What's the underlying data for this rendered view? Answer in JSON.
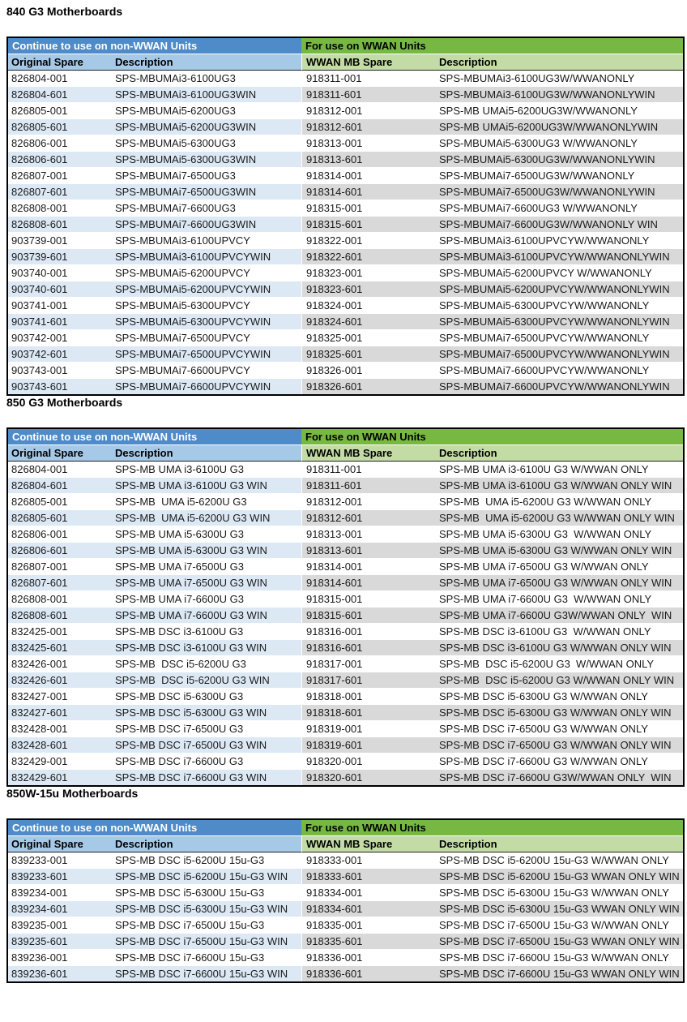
{
  "table_headers": {
    "non_wwan_group": "Continue to use on non-WWAN Units",
    "wwan_group": "For use on WWAN Units",
    "original_spare": "Original Spare",
    "description": "Description",
    "wwan_mb_spare": "WWAN MB Spare"
  },
  "colors": {
    "non_wwan_header": "#4E8BC8",
    "wwan_header": "#77B843",
    "non_wwan_subheader": "#A7C9E8",
    "wwan_subheader": "#C3DCA6",
    "stripe_blue": "#DCE9F5",
    "stripe_gray": "#D9D9D9",
    "border_black": "#000000"
  },
  "sections": [
    {
      "title": "840 G3 Motherboards",
      "rows": [
        [
          "826804-001",
          "SPS-MBUMAi3-6100UG3",
          "918311-001",
          "SPS-MBUMAi3-6100UG3W/WWANONLY"
        ],
        [
          "826804-601",
          "SPS-MBUMAi3-6100UG3WIN",
          "918311-601",
          "SPS-MBUMAi3-6100UG3W/WWANONLYWIN"
        ],
        [
          "826805-001",
          "SPS-MBUMAi5-6200UG3",
          "918312-001",
          "SPS-MB UMAi5-6200UG3W/WWANONLY"
        ],
        [
          "826805-601",
          "SPS-MBUMAi5-6200UG3WIN",
          "918312-601",
          "SPS-MB UMAi5-6200UG3W/WWANONLYWIN"
        ],
        [
          "826806-001",
          "SPS-MBUMAi5-6300UG3",
          "918313-001",
          "SPS-MBUMAi5-6300UG3 W/WWANONLY"
        ],
        [
          "826806-601",
          "SPS-MBUMAi5-6300UG3WIN",
          "918313-601",
          "SPS-MBUMAi5-6300UG3W/WWANONLYWIN"
        ],
        [
          "826807-001",
          "SPS-MBUMAi7-6500UG3",
          "918314-001",
          "SPS-MBUMAi7-6500UG3W/WWANONLY"
        ],
        [
          "826807-601",
          "SPS-MBUMAi7-6500UG3WIN",
          "918314-601",
          "SPS-MBUMAi7-6500UG3W/WWANONLYWIN"
        ],
        [
          "826808-001",
          "SPS-MBUMAi7-6600UG3",
          "918315-001",
          "SPS-MBUMAi7-6600UG3 W/WWANONLY"
        ],
        [
          "826808-601",
          "SPS-MBUMAi7-6600UG3WIN",
          "918315-601",
          "SPS-MBUMAi7-6600UG3W/WWANONLY WIN"
        ],
        [
          "903739-001",
          "SPS-MBUMAi3-6100UPVCY",
          "918322-001",
          "SPS-MBUMAi3-6100UPVCYW/WWANONLY"
        ],
        [
          "903739-601",
          "SPS-MBUMAi3-6100UPVCYWIN",
          "918322-601",
          "SPS-MBUMAi3-6100UPVCYW/WWANONLYWIN"
        ],
        [
          "903740-001",
          "SPS-MBUMAi5-6200UPVCY",
          "918323-001",
          "SPS-MBUMAi5-6200UPVCY W/WWANONLY"
        ],
        [
          "903740-601",
          "SPS-MBUMAi5-6200UPVCYWIN",
          "918323-601",
          "SPS-MBUMAi5-6200UPVCYW/WWANONLYWIN"
        ],
        [
          "903741-001",
          "SPS-MBUMAi5-6300UPVCY",
          "918324-001",
          "SPS-MBUMAi5-6300UPVCYW/WWANONLY"
        ],
        [
          "903741-601",
          "SPS-MBUMAi5-6300UPVCYWIN",
          "918324-601",
          "SPS-MBUMAi5-6300UPVCYW/WWANONLYWIN"
        ],
        [
          "903742-001",
          "SPS-MBUMAi7-6500UPVCY",
          "918325-001",
          "SPS-MBUMAi7-6500UPVCYW/WWANONLY"
        ],
        [
          "903742-601",
          "SPS-MBUMAi7-6500UPVCYWIN",
          "918325-601",
          "SPS-MBUMAi7-6500UPVCYW/WWANONLYWIN"
        ],
        [
          "903743-001",
          "SPS-MBUMAi7-6600UPVCY",
          "918326-001",
          "SPS-MBUMAi7-6600UPVCYW/WWANONLY"
        ],
        [
          "903743-601",
          "SPS-MBUMAi7-6600UPVCYWIN",
          "918326-601",
          "SPS-MBUMAi7-6600UPVCYW/WWANONLYWIN"
        ]
      ]
    },
    {
      "title": "850 G3 Motherboards",
      "rows": [
        [
          "826804-001",
          "SPS-MB UMA i3-6100U G3",
          "918311-001",
          "SPS-MB UMA i3-6100U G3 W/WWAN ONLY"
        ],
        [
          "826804-601",
          "SPS-MB UMA i3-6100U G3 WIN",
          "918311-601",
          "SPS-MB UMA i3-6100U G3 W/WWAN ONLY WIN"
        ],
        [
          "826805-001",
          "SPS-MB  UMA i5-6200U G3",
          "918312-001",
          "SPS-MB  UMA i5-6200U G3 W/WWAN ONLY"
        ],
        [
          "826805-601",
          "SPS-MB  UMA i5-6200U G3 WIN",
          "918312-601",
          "SPS-MB  UMA i5-6200U G3 W/WWAN ONLY WIN"
        ],
        [
          "826806-001",
          "SPS-MB UMA i5-6300U G3",
          "918313-001",
          "SPS-MB UMA i5-6300U G3  W/WWAN ONLY"
        ],
        [
          "826806-601",
          "SPS-MB UMA i5-6300U G3 WIN",
          "918313-601",
          "SPS-MB UMA i5-6300U G3 W/WWAN ONLY WIN"
        ],
        [
          "826807-001",
          "SPS-MB UMA i7-6500U G3",
          "918314-001",
          "SPS-MB UMA i7-6500U G3 W/WWAN ONLY"
        ],
        [
          "826807-601",
          "SPS-MB UMA i7-6500U G3 WIN",
          "918314-601",
          "SPS-MB UMA i7-6500U G3 W/WWAN ONLY WIN"
        ],
        [
          "826808-001",
          "SPS-MB UMA i7-6600U G3",
          "918315-001",
          "SPS-MB UMA i7-6600U G3  W/WWAN ONLY"
        ],
        [
          "826808-601",
          "SPS-MB UMA i7-6600U G3 WIN",
          "918315-601",
          "SPS-MB UMA i7-6600U G3W/WWAN ONLY  WIN"
        ],
        [
          "832425-001",
          "SPS-MB DSC i3-6100U G3",
          "918316-001",
          "SPS-MB DSC i3-6100U G3  W/WWAN ONLY"
        ],
        [
          "832425-601",
          "SPS-MB DSC i3-6100U G3 WIN",
          "918316-601",
          "SPS-MB DSC i3-6100U G3 W/WWAN ONLY WIN"
        ],
        [
          "832426-001",
          "SPS-MB  DSC i5-6200U G3",
          "918317-001",
          "SPS-MB  DSC i5-6200U G3  W/WWAN ONLY"
        ],
        [
          "832426-601",
          "SPS-MB  DSC i5-6200U G3 WIN",
          "918317-601",
          "SPS-MB  DSC i5-6200U G3 W/WWAN ONLY WIN"
        ],
        [
          "832427-001",
          "SPS-MB DSC i5-6300U G3",
          "918318-001",
          "SPS-MB DSC i5-6300U G3 W/WWAN ONLY"
        ],
        [
          "832427-601",
          "SPS-MB DSC i5-6300U G3 WIN",
          "918318-601",
          "SPS-MB DSC i5-6300U G3 W/WWAN ONLY WIN"
        ],
        [
          "832428-001",
          "SPS-MB DSC i7-6500U G3",
          "918319-001",
          "SPS-MB DSC i7-6500U G3 W/WWAN ONLY"
        ],
        [
          "832428-601",
          "SPS-MB DSC i7-6500U G3 WIN",
          "918319-601",
          "SPS-MB DSC i7-6500U G3 W/WWAN ONLY WIN"
        ],
        [
          "832429-001",
          "SPS-MB DSC i7-6600U G3",
          "918320-001",
          "SPS-MB DSC i7-6600U G3 W/WWAN ONLY"
        ],
        [
          "832429-601",
          "SPS-MB DSC i7-6600U G3 WIN",
          "918320-601",
          "SPS-MB DSC i7-6600U G3W/WWAN ONLY  WIN"
        ]
      ]
    },
    {
      "title": "850W-15u Motherboards",
      "rows": [
        [
          "839233-001",
          "SPS-MB DSC i5-6200U 15u-G3",
          "918333-001",
          "SPS-MB DSC i5-6200U 15u-G3 W/WWAN ONLY"
        ],
        [
          "839233-601",
          "SPS-MB DSC i5-6200U 15u-G3 WIN",
          "918333-601",
          "SPS-MB DSC i5-6200U 15u-G3 WWAN ONLY WIN"
        ],
        [
          "839234-001",
          "SPS-MB DSC i5-6300U 15u-G3",
          "918334-001",
          "SPS-MB DSC i5-6300U 15u-G3 W/WWAN ONLY"
        ],
        [
          "839234-601",
          "SPS-MB DSC i5-6300U 15u-G3 WIN",
          "918334-601",
          "SPS-MB DSC i5-6300U 15u-G3 WWAN ONLY WIN"
        ],
        [
          "839235-001",
          "SPS-MB DSC i7-6500U 15u-G3",
          "918335-001",
          "SPS-MB DSC i7-6500U 15u-G3 W/WWAN ONLY"
        ],
        [
          "839235-601",
          "SPS-MB DSC i7-6500U 15u-G3 WIN",
          "918335-601",
          "SPS-MB DSC i7-6500U 15u-G3 WWAN ONLY WIN"
        ],
        [
          "839236-001",
          "SPS-MB DSC i7-6600U 15u-G3",
          "918336-001",
          "SPS-MB DSC i7-6600U 15u-G3 W/WWAN ONLY"
        ],
        [
          "839236-601",
          "SPS-MB DSC i7-6600U 15u-G3 WIN",
          "918336-601",
          "SPS-MB DSC i7-6600U 15u-G3 WWAN ONLY WIN"
        ]
      ]
    }
  ]
}
